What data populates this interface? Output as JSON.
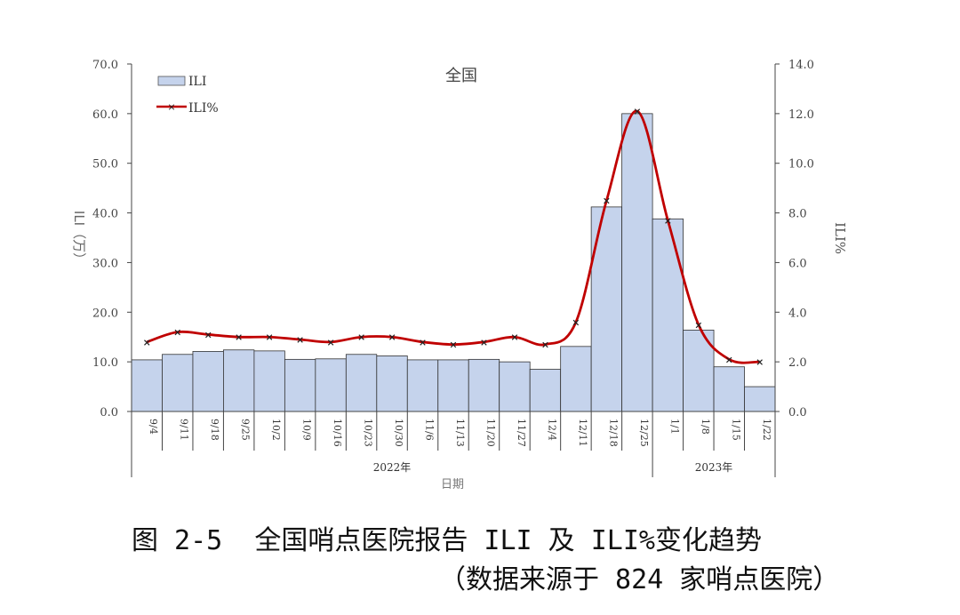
{
  "chart_data": {
    "type": "bar",
    "title": "全国",
    "xlabel": "日期",
    "ylabel_left": "ILI（万）",
    "ylabel_right": "ILI%",
    "categories": [
      "9/4",
      "9/11",
      "9/18",
      "9/25",
      "10/2",
      "10/9",
      "10/16",
      "10/23",
      "10/30",
      "11/6",
      "11/13",
      "11/20",
      "11/27",
      "12/4",
      "12/11",
      "12/18",
      "12/25",
      "1/1",
      "1/8",
      "1/15",
      "1/22"
    ],
    "year_groups": [
      {
        "label": "2022年",
        "count": 17
      },
      {
        "label": "2023年",
        "count": 4
      }
    ],
    "series": [
      {
        "name": "ILI",
        "axis": "left",
        "kind": "bar",
        "color": "#c5d3ec",
        "values": [
          10.4,
          11.5,
          12.1,
          12.4,
          12.2,
          10.5,
          10.6,
          11.5,
          11.2,
          10.4,
          10.4,
          10.5,
          10.0,
          8.5,
          13.1,
          41.2,
          60.0,
          38.8,
          16.4,
          9.0,
          5.0
        ]
      },
      {
        "name": "ILI%",
        "axis": "right",
        "kind": "line",
        "color": "#c00000",
        "values": [
          2.8,
          3.2,
          3.1,
          3.0,
          3.0,
          2.9,
          2.8,
          3.0,
          3.0,
          2.8,
          2.7,
          2.8,
          3.0,
          2.7,
          3.6,
          8.5,
          12.1,
          7.7,
          3.5,
          2.1,
          2.0
        ]
      }
    ],
    "ylim_left": [
      0,
      70
    ],
    "yticks_left": [
      "0.0",
      "10.0",
      "20.0",
      "30.0",
      "40.0",
      "50.0",
      "60.0",
      "70.0"
    ],
    "ylim_right": [
      0,
      14
    ],
    "yticks_right": [
      "0.0",
      "2.0",
      "4.0",
      "6.0",
      "8.0",
      "10.0",
      "12.0",
      "14.0"
    ],
    "legend_position": "top-left",
    "grid": false
  },
  "caption": {
    "line1": "图 2-5  全国哨点医院报告 ILI 及 ILI%变化趋势",
    "line2": "（数据来源于 824 家哨点医院）"
  }
}
